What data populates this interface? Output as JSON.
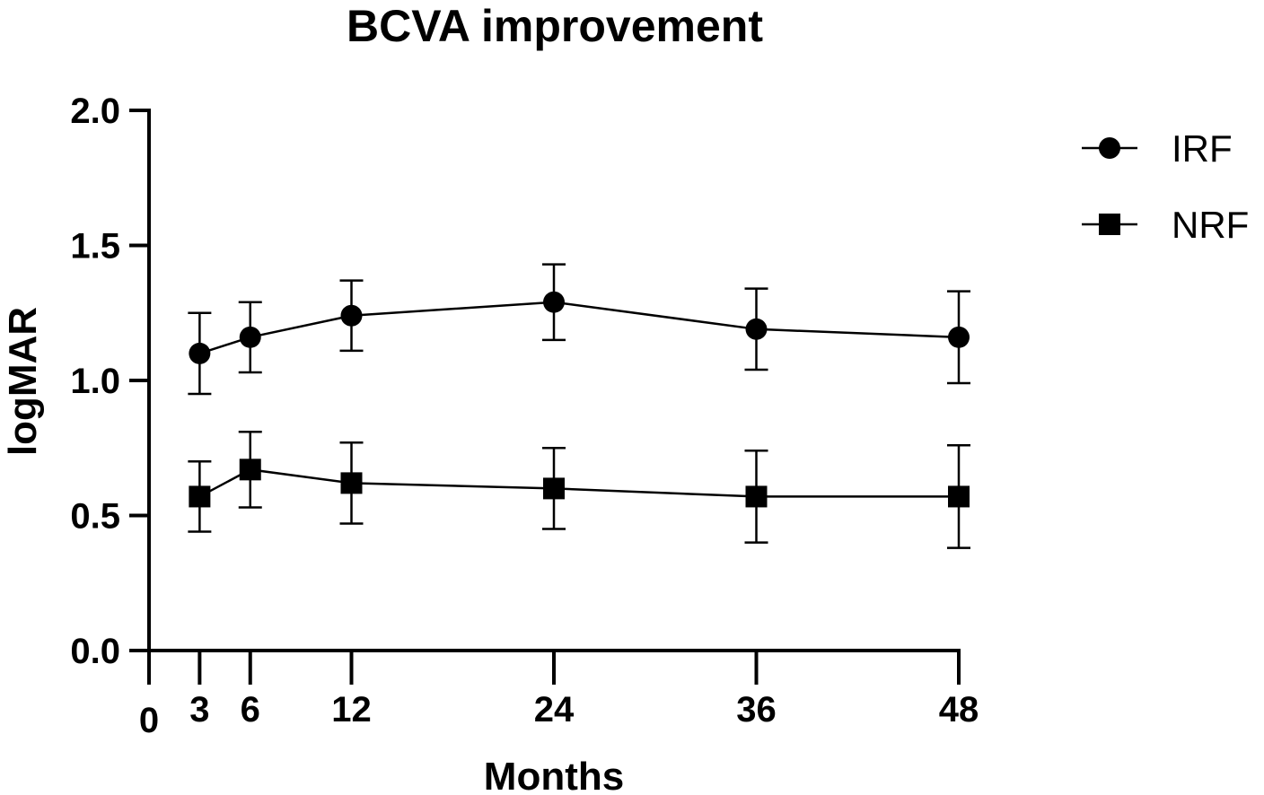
{
  "chart_data": {
    "type": "line",
    "title": "BCVA improvement",
    "xlabel": "Months",
    "ylabel": "logMAR",
    "xlim": [
      0,
      48
    ],
    "ylim": [
      0,
      2
    ],
    "x_ticks": [
      0,
      3,
      6,
      12,
      24,
      36,
      48
    ],
    "x_tick_labels": [
      "0",
      "3",
      "6",
      "12",
      "24",
      "36",
      "48"
    ],
    "y_ticks": [
      0,
      0.5,
      1,
      1.5,
      2
    ],
    "y_tick_labels": [
      "0.0",
      "0.5",
      "1.0",
      "1.5",
      "2.0"
    ],
    "grid": false,
    "legend_position": "top-right",
    "series": [
      {
        "name": "IRF",
        "marker": "circle",
        "x": [
          3,
          6,
          12,
          24,
          36,
          48
        ],
        "values": [
          1.1,
          1.16,
          1.24,
          1.29,
          1.19,
          1.16
        ],
        "error_low": [
          0.95,
          1.03,
          1.11,
          1.15,
          1.04,
          0.99
        ],
        "error_high": [
          1.25,
          1.29,
          1.37,
          1.43,
          1.34,
          1.33
        ]
      },
      {
        "name": "NRF",
        "marker": "square",
        "x": [
          3,
          6,
          12,
          24,
          36,
          48
        ],
        "values": [
          0.57,
          0.67,
          0.62,
          0.6,
          0.57,
          0.57
        ],
        "error_low": [
          0.44,
          0.53,
          0.47,
          0.45,
          0.4,
          0.38
        ],
        "error_high": [
          0.7,
          0.81,
          0.77,
          0.75,
          0.74,
          0.76
        ]
      }
    ]
  }
}
